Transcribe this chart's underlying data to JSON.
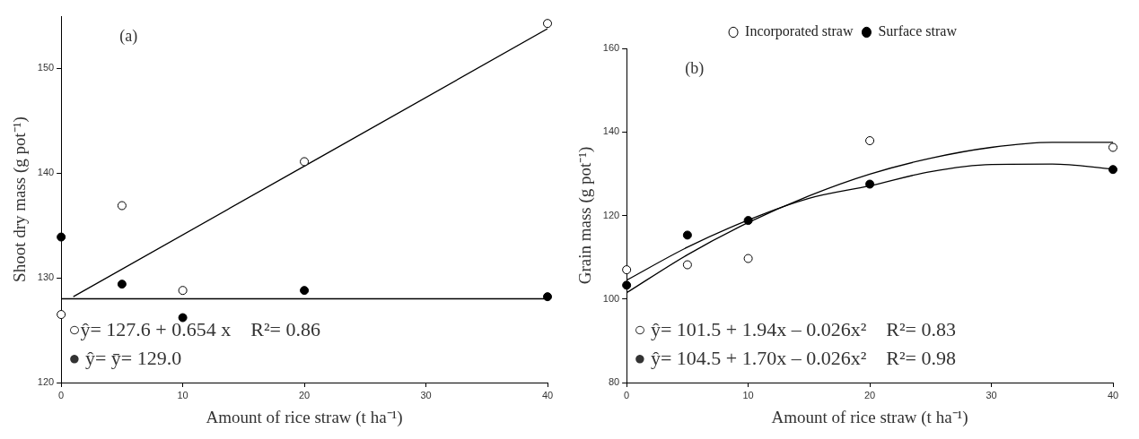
{
  "chart_data": [
    {
      "type": "scatter",
      "xlabel": "Amount of rice straw (t ha⁻¹)",
      "ylabel": "Shoot dry mass (g pot⁻¹)",
      "x": [
        0,
        5,
        10,
        20,
        40
      ],
      "series": [
        {
          "color": "#ffffff",
          "values": [
            126.5,
            136.9,
            128.8,
            141.1,
            154.3
          ]
        },
        {
          "color": "#000000",
          "values": [
            133.9,
            129.4,
            126.2,
            128.8,
            128.2
          ]
        },
        {
          "type": "line",
          "color": "#000000",
          "marker": "none",
          "x": [
            1,
            40
          ],
          "values": [
            128.2,
            153.8
          ]
        },
        {
          "type": "line",
          "color": "#000000",
          "marker": "none",
          "x": [
            0,
            40
          ],
          "values": [
            128.0,
            128.0
          ]
        }
      ],
      "xlim": [
        0,
        40
      ],
      "xticks": [
        0,
        10,
        20,
        30,
        40
      ],
      "ylim": [
        120,
        155
      ],
      "yticks": [
        120,
        130,
        140,
        150
      ],
      "grid": false,
      "legend": false,
      "marker": "circle",
      "annotations": [
        "(a)",
        "○ŷ= 127.6 + 0.654 x    R²= 0.86",
        "● ŷ= ȳ= 129.0"
      ]
    },
    {
      "type": "scatter",
      "xlabel": "Amount of rice straw (t ha⁻¹)",
      "ylabel": "Grain mass (g pot⁻¹)",
      "x": [
        0,
        5,
        10,
        20,
        40
      ],
      "series": [
        {
          "name": "Incorporated straw",
          "color": "#ffffff",
          "values": [
            107.0,
            108.2,
            109.7,
            137.9,
            136.3
          ]
        },
        {
          "name": "Surface straw",
          "color": "#000000",
          "values": [
            103.3,
            115.3,
            118.8,
            127.5,
            131.0
          ]
        },
        {
          "type": "line",
          "color": "#000000",
          "marker": "none",
          "x": [
            0,
            5,
            10,
            15,
            20,
            25,
            30,
            35,
            40
          ],
          "values": [
            101.5,
            110.6,
            118.3,
            124.7,
            129.9,
            133.7,
            136.3,
            137.5,
            137.5
          ]
        },
        {
          "type": "line",
          "color": "#000000",
          "marker": "none",
          "x": [
            0,
            5,
            10,
            15,
            20,
            25,
            30,
            35,
            40
          ],
          "values": [
            104.5,
            112.4,
            118.9,
            124.1,
            127.1,
            130.5,
            132.2,
            132.3,
            131.1
          ]
        }
      ],
      "xlim": [
        0,
        40
      ],
      "xticks": [
        0,
        10,
        20,
        30,
        40
      ],
      "ylim": [
        80,
        160
      ],
      "yticks": [
        80,
        100,
        120,
        140,
        160
      ],
      "grid": false,
      "legend": "top",
      "marker": "circle",
      "annotations": [
        "(b)",
        "○ ŷ= 101.5 + 1.94x – 0.026x²    R²= 0.83",
        "● ŷ= 104.5 + 1.70x – 0.026x²    R²= 0.98"
      ]
    }
  ]
}
